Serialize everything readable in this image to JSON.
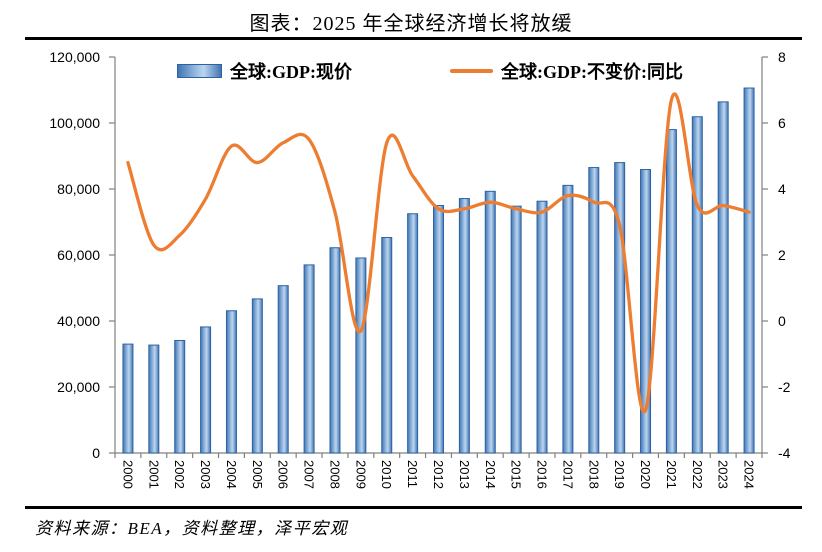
{
  "title": "图表：2025 年全球经济增长将放缓",
  "source_note": "资料来源：BEA，资料整理，泽平宏观",
  "legend": {
    "bar_label": "全球:GDP:现价",
    "line_label": "全球:GDP:不变价:同比"
  },
  "colors": {
    "bar_edge": "#2d63a2",
    "bar_dark": "#4076b4",
    "bar_light": "#a9c8e8",
    "bar_highlight": "#bcd4ee",
    "line": "#ED7D31",
    "axis": "#808080",
    "text": "#000000",
    "divider": "#000000"
  },
  "chart_data": {
    "type": "combo-bar-line",
    "categories": [
      "2000",
      "2001",
      "2002",
      "2003",
      "2004",
      "2005",
      "2006",
      "2007",
      "2008",
      "2009",
      "2010",
      "2011",
      "2012",
      "2013",
      "2014",
      "2015",
      "2016",
      "2017",
      "2018",
      "2019",
      "2020",
      "2021",
      "2022",
      "2023",
      "2024"
    ],
    "series": [
      {
        "name": "全球:GDP:现价",
        "type": "bar",
        "axis": "left",
        "values": [
          33000,
          32700,
          34100,
          38200,
          43100,
          46700,
          50700,
          57000,
          62200,
          59100,
          65300,
          72500,
          75000,
          77100,
          79300,
          74800,
          76300,
          81100,
          86500,
          88000,
          85900,
          98000,
          101900,
          106400,
          110600
        ]
      },
      {
        "name": "全球:GDP:不变价:同比",
        "type": "line",
        "smooth": true,
        "axis": "right",
        "values": [
          4.8,
          2.3,
          2.6,
          3.7,
          5.3,
          4.8,
          5.4,
          5.5,
          3.3,
          -0.3,
          5.4,
          4.4,
          3.4,
          3.4,
          3.6,
          3.4,
          3.3,
          3.8,
          3.6,
          2.9,
          -2.7,
          6.7,
          3.5,
          3.5,
          3.3
        ]
      }
    ],
    "left_axis": {
      "min": 0,
      "max": 120000,
      "step": 20000,
      "tick_labels": [
        "0",
        "20,000",
        "40,000",
        "60,000",
        "80,000",
        "100,000",
        "120,000"
      ]
    },
    "right_axis": {
      "min": -4,
      "max": 8,
      "step": 2,
      "tick_labels": [
        "-4",
        "-2",
        "0",
        "2",
        "4",
        "6",
        "8"
      ]
    },
    "grid": false,
    "legend_position": "top-inside"
  }
}
